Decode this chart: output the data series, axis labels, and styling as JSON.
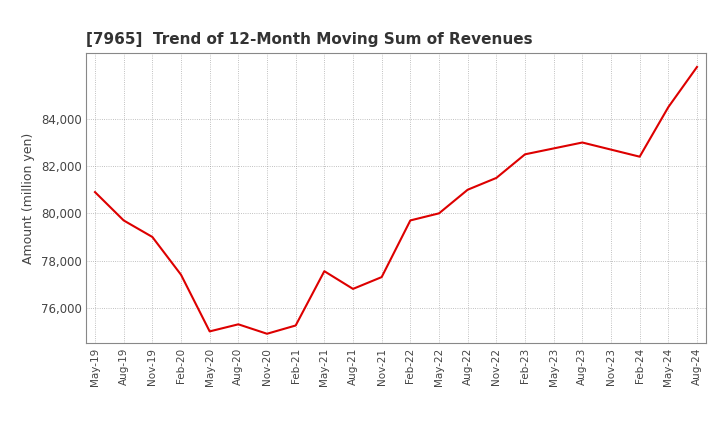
{
  "title": "[7965]  Trend of 12-Month Moving Sum of Revenues",
  "ylabel": "Amount (million yen)",
  "line_color": "#dd0000",
  "line_width": 1.5,
  "background_color": "#ffffff",
  "grid_color": "#999999",
  "ylim": [
    74500,
    86800
  ],
  "yticks": [
    76000,
    78000,
    80000,
    82000,
    84000
  ],
  "x_labels": [
    "May-19",
    "Aug-19",
    "Nov-19",
    "Feb-20",
    "May-20",
    "Aug-20",
    "Nov-20",
    "Feb-21",
    "May-21",
    "Aug-21",
    "Nov-21",
    "Feb-22",
    "May-22",
    "Aug-22",
    "Nov-22",
    "Feb-23",
    "May-23",
    "Aug-23",
    "Nov-23",
    "Feb-24",
    "May-24",
    "Aug-24"
  ],
  "values": [
    80900,
    79700,
    79000,
    77400,
    75000,
    75300,
    74900,
    75250,
    77550,
    76800,
    77300,
    79700,
    80000,
    81000,
    81500,
    82500,
    82750,
    83000,
    82700,
    82400,
    84500,
    86200
  ]
}
